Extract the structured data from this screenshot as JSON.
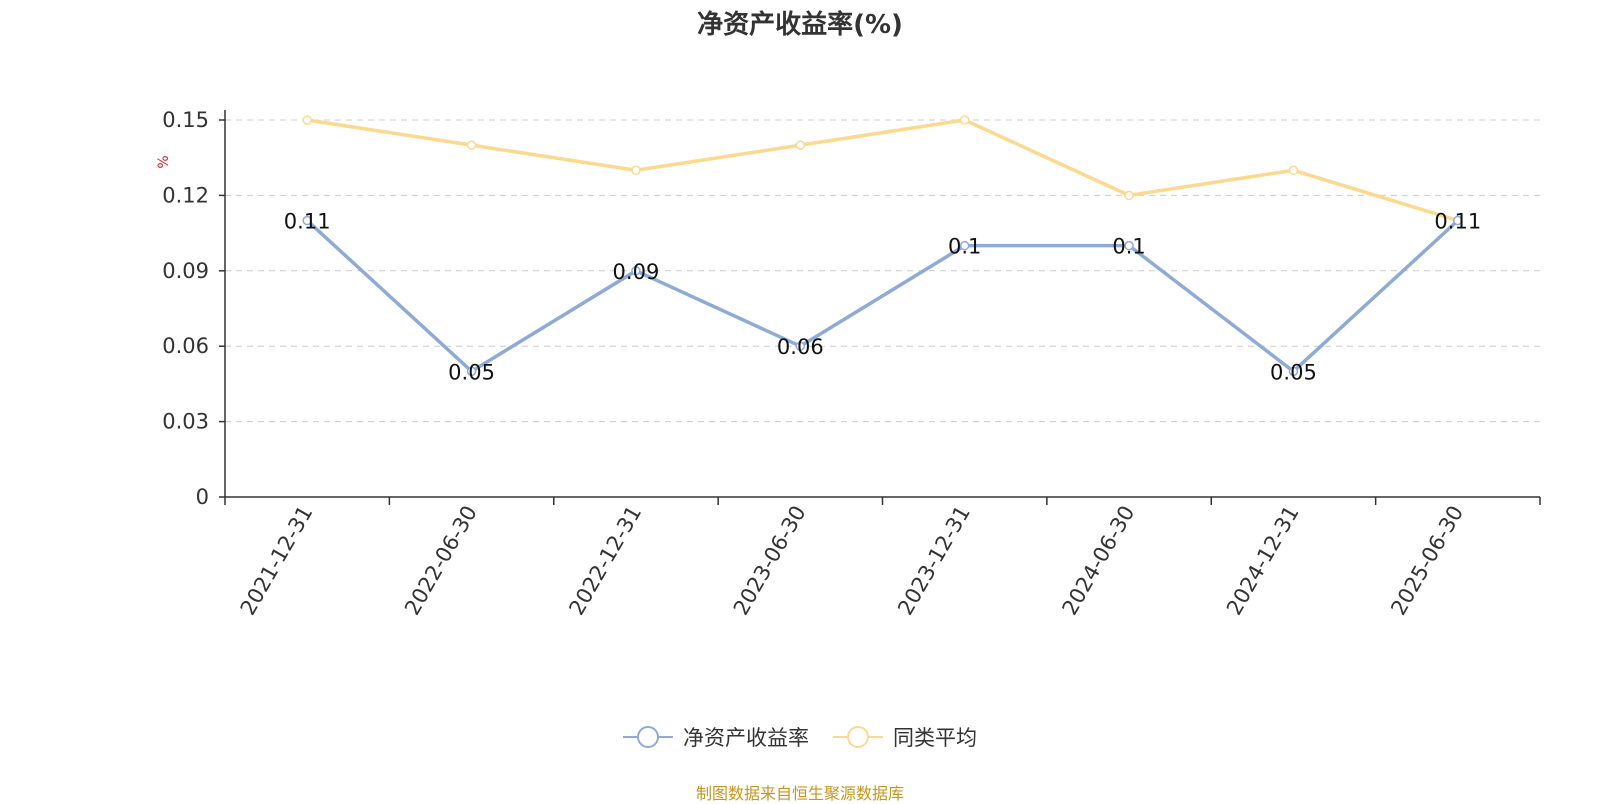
{
  "chart_data": {
    "type": "line",
    "title": "净资产收益率(%)",
    "ylabel": "%",
    "ylim": [
      0,
      0.15
    ],
    "yticks": [
      "0",
      "0.03",
      "0.06",
      "0.09",
      "0.12",
      "0.15"
    ],
    "categories": [
      "2021-12-31",
      "2022-06-30",
      "2022-12-31",
      "2023-06-30",
      "2023-12-31",
      "2024-06-30",
      "2024-12-31",
      "2025-06-30"
    ],
    "series": [
      {
        "name": "净资产收益率",
        "color": "#8eabd6",
        "values": [
          0.11,
          0.05,
          0.09,
          0.06,
          0.1,
          0.1,
          0.05,
          0.11
        ],
        "labels": [
          "0.11",
          "0.05",
          "0.09",
          "0.06",
          "0.1",
          "0.1",
          "0.05",
          "0.11"
        ]
      },
      {
        "name": "同类平均",
        "color": "#fbd98f",
        "values": [
          0.15,
          0.14,
          0.13,
          0.14,
          0.15,
          0.12,
          0.13,
          0.11
        ]
      }
    ],
    "grid": true,
    "legend": "bottom"
  },
  "source": "制图数据来自恒生聚源数据库"
}
